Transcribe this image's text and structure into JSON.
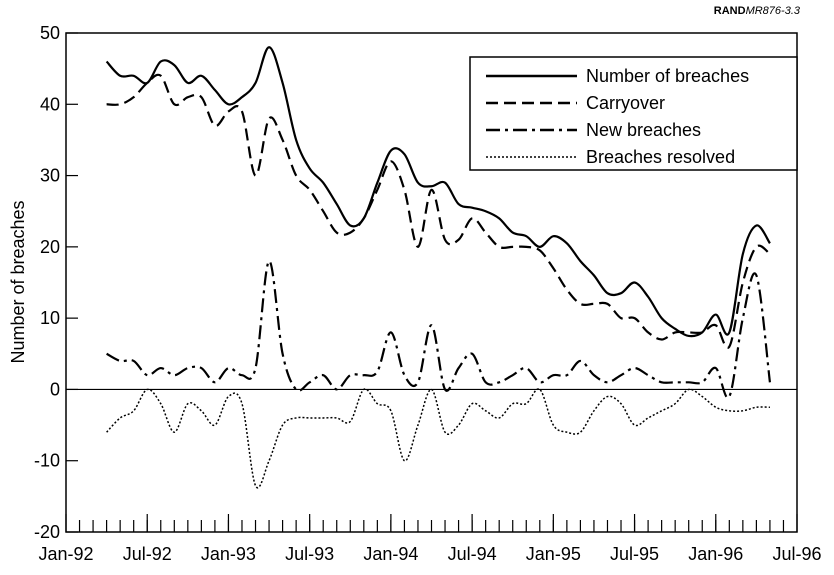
{
  "chart_data": {
    "type": "line",
    "source": {
      "org": "RAND",
      "id": "MR876-3.3"
    },
    "ylabel": "Number of breaches",
    "x": [
      "1992-04",
      "1992-05",
      "1992-06",
      "1992-07",
      "1992-08",
      "1992-09",
      "1992-10",
      "1992-11",
      "1992-12",
      "1993-01",
      "1993-02",
      "1993-03",
      "1993-04",
      "1993-05",
      "1993-06",
      "1993-07",
      "1993-08",
      "1993-09",
      "1993-10",
      "1993-11",
      "1993-12",
      "1994-01",
      "1994-02",
      "1994-03",
      "1994-04",
      "1994-05",
      "1994-06",
      "1994-07",
      "1994-08",
      "1994-09",
      "1994-10",
      "1994-11",
      "1994-12",
      "1995-01",
      "1995-02",
      "1995-03",
      "1995-04",
      "1995-05",
      "1995-06",
      "1995-07",
      "1995-08",
      "1995-09",
      "1995-10",
      "1995-11",
      "1995-12",
      "1996-01",
      "1996-02",
      "1996-03",
      "1996-04",
      "1996-05"
    ],
    "series": [
      {
        "name": "Number of breaches",
        "color": "#000000",
        "dash": "solid",
        "values": [
          46,
          44,
          44,
          43,
          46,
          45.5,
          43,
          44,
          42,
          40,
          41,
          43,
          48,
          43,
          35,
          31,
          29,
          26,
          23,
          24,
          29,
          33.5,
          33,
          29,
          28.5,
          29,
          26,
          25.5,
          25,
          24,
          22,
          21.5,
          20,
          21.5,
          20.5,
          18,
          16,
          13.5,
          13.5,
          15,
          13,
          10,
          8.5,
          7.5,
          8,
          10.5,
          8,
          19,
          23,
          20.5
        ]
      },
      {
        "name": "Carryover",
        "color": "#000000",
        "dash": "dashed",
        "values": [
          40,
          40,
          41,
          43,
          44,
          40,
          41,
          41,
          37,
          39,
          39,
          30,
          38,
          35,
          30,
          28,
          25,
          22,
          22,
          24,
          28,
          32,
          28,
          20,
          28,
          21,
          21,
          24,
          22,
          20,
          20,
          20,
          19.5,
          17,
          14,
          12,
          12,
          12,
          10,
          10,
          8,
          7,
          8,
          8,
          8,
          9,
          6,
          15,
          20,
          19
        ]
      },
      {
        "name": "New breaches",
        "color": "#000000",
        "dash": "dashdot",
        "values": [
          5,
          4,
          4,
          2,
          3,
          2,
          3,
          3,
          1,
          3,
          2,
          3,
          18,
          5,
          0,
          1,
          2,
          0,
          2,
          2,
          2.5,
          8,
          2,
          1,
          9,
          0,
          3,
          5,
          1,
          1,
          2,
          3,
          1,
          2,
          2,
          4,
          2,
          1,
          2,
          3,
          2,
          1,
          1,
          1,
          1,
          3,
          -1,
          10,
          16,
          1
        ]
      },
      {
        "name": "Breaches resolved",
        "color": "#000000",
        "dash": "dotted",
        "values": [
          -6,
          -4,
          -3,
          0,
          -2,
          -6,
          -2,
          -3,
          -5,
          -1,
          -2,
          -13.5,
          -10,
          -5,
          -4,
          -4,
          -4,
          -4,
          -4.5,
          0,
          -2,
          -3,
          -10,
          -5,
          0,
          -6,
          -5,
          -2,
          -3,
          -4,
          -2,
          -2,
          0,
          -5,
          -6,
          -6,
          -3,
          -1,
          -2,
          -5,
          -4,
          -3,
          -2,
          0,
          -1,
          -2.5,
          -3,
          -3,
          -2.5,
          -2.5
        ]
      }
    ],
    "xlim": [
      "1992-01",
      "1996-07"
    ],
    "xticks": [
      {
        "value": "1992-01",
        "label": "Jan-92"
      },
      {
        "value": "1992-07",
        "label": "Jul-92"
      },
      {
        "value": "1993-01",
        "label": "Jan-93"
      },
      {
        "value": "1993-07",
        "label": "Jul-93"
      },
      {
        "value": "1994-01",
        "label": "Jan-94"
      },
      {
        "value": "1994-07",
        "label": "Jul-94"
      },
      {
        "value": "1995-01",
        "label": "Jan-95"
      },
      {
        "value": "1995-07",
        "label": "Jul-95"
      },
      {
        "value": "1996-01",
        "label": "Jan-96"
      },
      {
        "value": "1996-07",
        "label": "Jul-96"
      }
    ],
    "ylim": [
      -20,
      50
    ],
    "yticks": [
      -20,
      -10,
      0,
      10,
      20,
      30,
      40,
      50
    ],
    "legend": "upper right",
    "grid": false
  }
}
